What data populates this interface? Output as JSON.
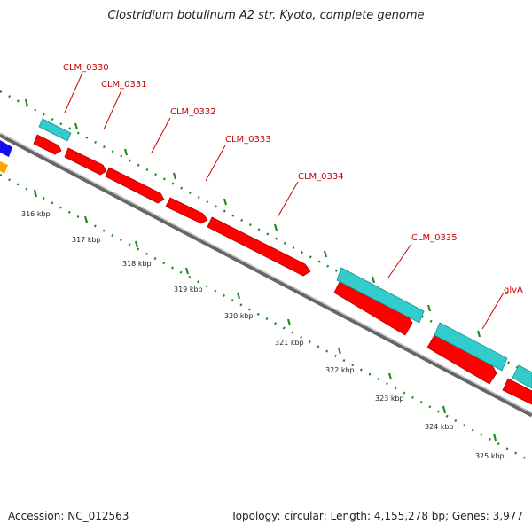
{
  "title": "Clostridium botulinum A2 str. Kyoto, complete genome",
  "footer": {
    "accession": "Accession: NC_012563",
    "summary": "Topology: circular; Length: 4,155,278 bp; Genes: 3,977"
  },
  "gene_labels": [
    "CLM_0330",
    "CLM_0331",
    "CLM_0332",
    "CLM_0333",
    "CLM_0334",
    "CLM_0335",
    "glvA"
  ],
  "scale_labels": [
    "316 kbp",
    "317 kbp",
    "318 kbp",
    "319 kbp",
    "320 kbp",
    "321 kbp",
    "322 kbp",
    "323 kbp",
    "324 kbp",
    "325 kbp"
  ],
  "colors": {
    "cds": "#ff0000",
    "cds_dark": "#b00000",
    "rna": "#33cccc",
    "rna_dark": "#1a8f8f",
    "backbone": "#777777",
    "tick": "#228b22",
    "label": "#cc0000",
    "blue_feature": "#1010ee",
    "orange_feature": "#ffa500"
  }
}
